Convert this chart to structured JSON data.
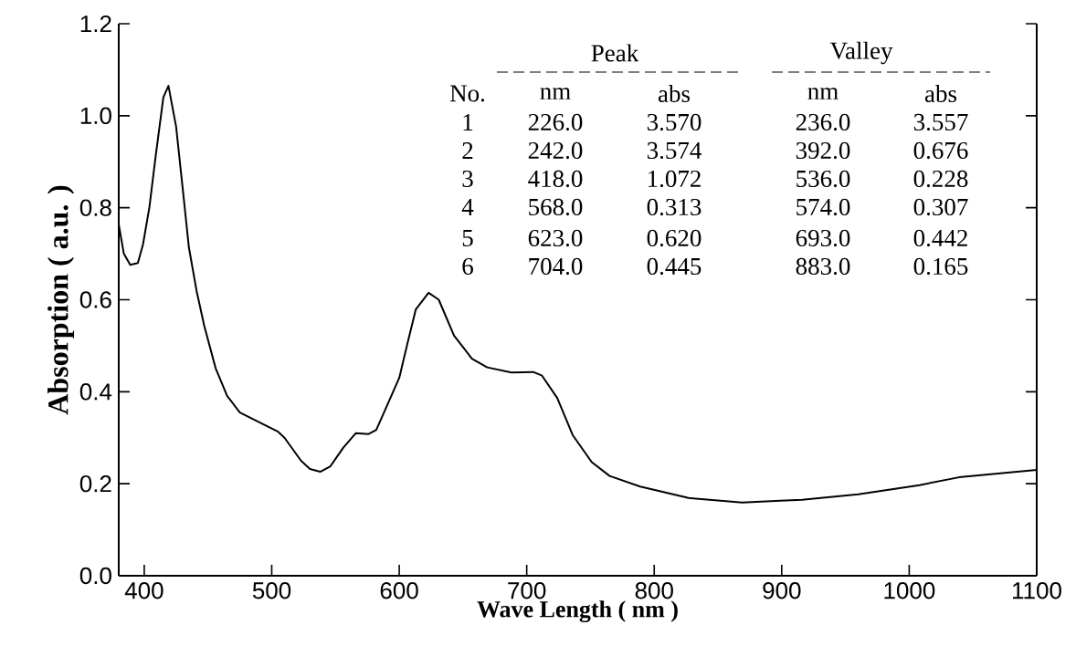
{
  "chart_data": {
    "type": "line",
    "xlabel": "Wave Length ( nm )",
    "ylabel": "Absorption ( a.u. )",
    "x": [
      380,
      384,
      389,
      395,
      399,
      404,
      409,
      415,
      419,
      425,
      431,
      435,
      441,
      447,
      456,
      465,
      475,
      490,
      505,
      510,
      523,
      530,
      538,
      546,
      556,
      566,
      576,
      582,
      590,
      600,
      606,
      613,
      623,
      631,
      643,
      657,
      669,
      688,
      705,
      712,
      724,
      736,
      751,
      765,
      789,
      827,
      869,
      899,
      916,
      960,
      1008,
      1039,
      1100
    ],
    "values": [
      0.764,
      0.7,
      0.676,
      0.68,
      0.72,
      0.8,
      0.913,
      1.04,
      1.065,
      0.976,
      0.82,
      0.714,
      0.62,
      0.544,
      0.451,
      0.391,
      0.355,
      0.334,
      0.313,
      0.3,
      0.25,
      0.232,
      0.226,
      0.238,
      0.278,
      0.31,
      0.308,
      0.317,
      0.367,
      0.43,
      0.5,
      0.579,
      0.615,
      0.6,
      0.522,
      0.472,
      0.453,
      0.442,
      0.443,
      0.435,
      0.386,
      0.306,
      0.247,
      0.217,
      0.194,
      0.169,
      0.159,
      0.163,
      0.165,
      0.177,
      0.197,
      0.214,
      0.23
    ],
    "color": "#000000",
    "xlim": [
      380,
      1100
    ],
    "ylim": [
      0,
      1.2
    ],
    "xticks": [
      400,
      500,
      600,
      700,
      800,
      900,
      1000,
      1100
    ],
    "yticks": [
      {
        "value": 0,
        "label": "0.0"
      },
      {
        "value": 0.2,
        "label": "0.2"
      },
      {
        "value": 0.4,
        "label": "0.4"
      },
      {
        "value": 0.6,
        "label": "0.6"
      },
      {
        "value": 0.8,
        "label": "0.8"
      },
      {
        "value": 1.0,
        "label": "1.0"
      },
      {
        "value": 1.2,
        "label": "1.2"
      }
    ],
    "grid": false,
    "marker": "none",
    "line_style": "solid",
    "annotations": [
      "Peak",
      "Valley",
      "No.",
      "nm",
      "abs",
      "nm",
      "abs",
      "1",
      "226.0",
      "3.570",
      "236.0",
      "3.557",
      "2",
      "242.0",
      "3.574",
      "392.0",
      "0.676",
      "3",
      "418.0",
      "1.072",
      "536.0",
      "0.228",
      "4",
      "568.0",
      "0.313",
      "574.0",
      "0.307",
      "5",
      "623.0",
      "0.620",
      "693.0",
      "0.442",
      "6",
      "704.0",
      "0.445",
      "883.0",
      "0.165"
    ]
  }
}
